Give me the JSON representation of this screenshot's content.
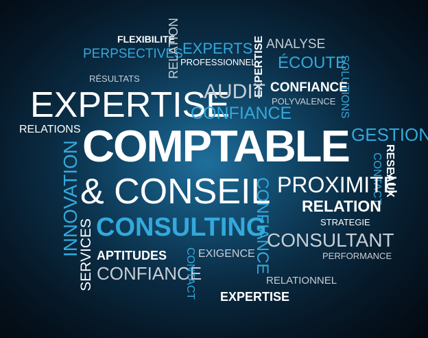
{
  "words": {
    "flexibilite": "FLEXIBILITÉ",
    "perpsectives": "PERPSECTIVES",
    "resultats": "RÉSULTATS",
    "relation_v": "RELATION",
    "experts": "EXPERTS",
    "professionnel": "PROFESSIONNEL",
    "expertise_v": "EXPERTISE",
    "analyse": "ANALYSE",
    "ecoute": "ÉCOUTE",
    "solutions": "SOLUTIONS",
    "expertise_big": "EXPERTISE",
    "audit": "AUDIT",
    "confiance_top": "CONFIANCE",
    "confiance_blue": "CONFIANCE",
    "polyvalence": "POLYVALENCE",
    "gestion": "GESTION",
    "relations": "RELATIONS",
    "comptable": "COMPTABLE",
    "reseaux": "RESEAUX",
    "contact_right": "CONTACT",
    "innovation": "INNOVATION",
    "conseil": "& CONSEIL",
    "confiance_v": "CONFIANCE",
    "proximite": "PROXIMITÉ",
    "relation": "RELATION",
    "strategie": "STRATEGIE",
    "consulting": "CONSULTING",
    "services": "SERVICES",
    "consultant": "CONSULTANT",
    "aptitudes": "APTITUDES",
    "exigence": "EXIGENCE",
    "performance": "PERFORMANCE",
    "confiance_bottom": "CONFIANCE",
    "contact_bottom": "CONTACT",
    "relationnel": "RELATIONNEL",
    "expertise_bottom": "EXPERTISE"
  },
  "colors": {
    "background_center": "#1f6f9c",
    "background_edge": "#03080f",
    "accent_blue": "#33a9dc",
    "text_white": "#ffffff",
    "text_grey": "#c7ced6"
  }
}
